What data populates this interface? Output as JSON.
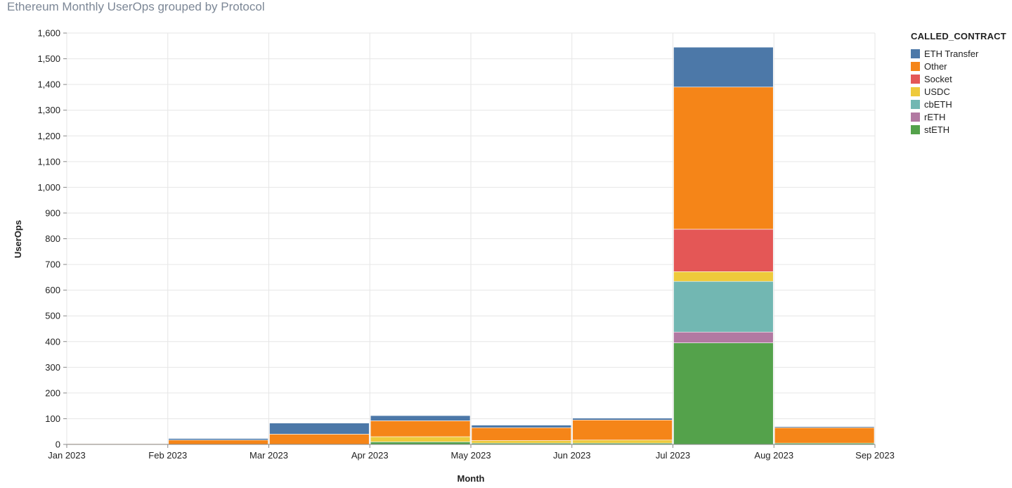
{
  "page": {
    "title": "Ethereum Monthly UserOps grouped by Protocol"
  },
  "colors": {
    "ETH Transfer": "#4c78a8",
    "Other": "#f58518",
    "Socket": "#e45756",
    "USDC": "#eeca3b",
    "cbETH": "#72b7b2",
    "rETH": "#b279a2",
    "stETH": "#54a24b"
  },
  "chart_data": {
    "type": "bar",
    "stacked": true,
    "title": "Ethereum Monthly UserOps grouped by Protocol",
    "xlabel": "Month",
    "ylabel": "UserOps",
    "x_ticks": [
      "Jan 2023",
      "Feb 2023",
      "Mar 2023",
      "Apr 2023",
      "May 2023",
      "Jun 2023",
      "Jul 2023",
      "Aug 2023",
      "Sep 2023"
    ],
    "categories": [
      "Jan 2023",
      "Feb 2023",
      "Mar 2023",
      "Apr 2023",
      "May 2023",
      "Jun 2023",
      "Jul 2023",
      "Aug 2023"
    ],
    "ylim": [
      0,
      1600
    ],
    "y_ticks": [
      0,
      100,
      200,
      300,
      400,
      500,
      600,
      700,
      800,
      900,
      1000,
      1100,
      1200,
      1300,
      1400,
      1500,
      1600
    ],
    "grid": true,
    "legend": {
      "title": "CALLED_CONTRACT",
      "position": "right"
    },
    "series": [
      {
        "name": "stETH",
        "values": [
          0,
          0,
          0,
          10,
          5,
          5,
          395,
          5
        ]
      },
      {
        "name": "rETH",
        "values": [
          0,
          0,
          0,
          0,
          0,
          0,
          42,
          0
        ]
      },
      {
        "name": "cbETH",
        "values": [
          0,
          0,
          0,
          0,
          0,
          0,
          197,
          0
        ]
      },
      {
        "name": "USDC",
        "values": [
          0,
          0,
          0,
          20,
          10,
          12,
          38,
          0
        ]
      },
      {
        "name": "Socket",
        "values": [
          0,
          0,
          0,
          0,
          0,
          0,
          165,
          0
        ]
      },
      {
        "name": "Other",
        "values": [
          3,
          17,
          40,
          62,
          50,
          78,
          553,
          60
        ]
      },
      {
        "name": "ETH Transfer",
        "values": [
          1,
          6,
          43,
          20,
          10,
          7,
          155,
          4
        ]
      }
    ]
  }
}
